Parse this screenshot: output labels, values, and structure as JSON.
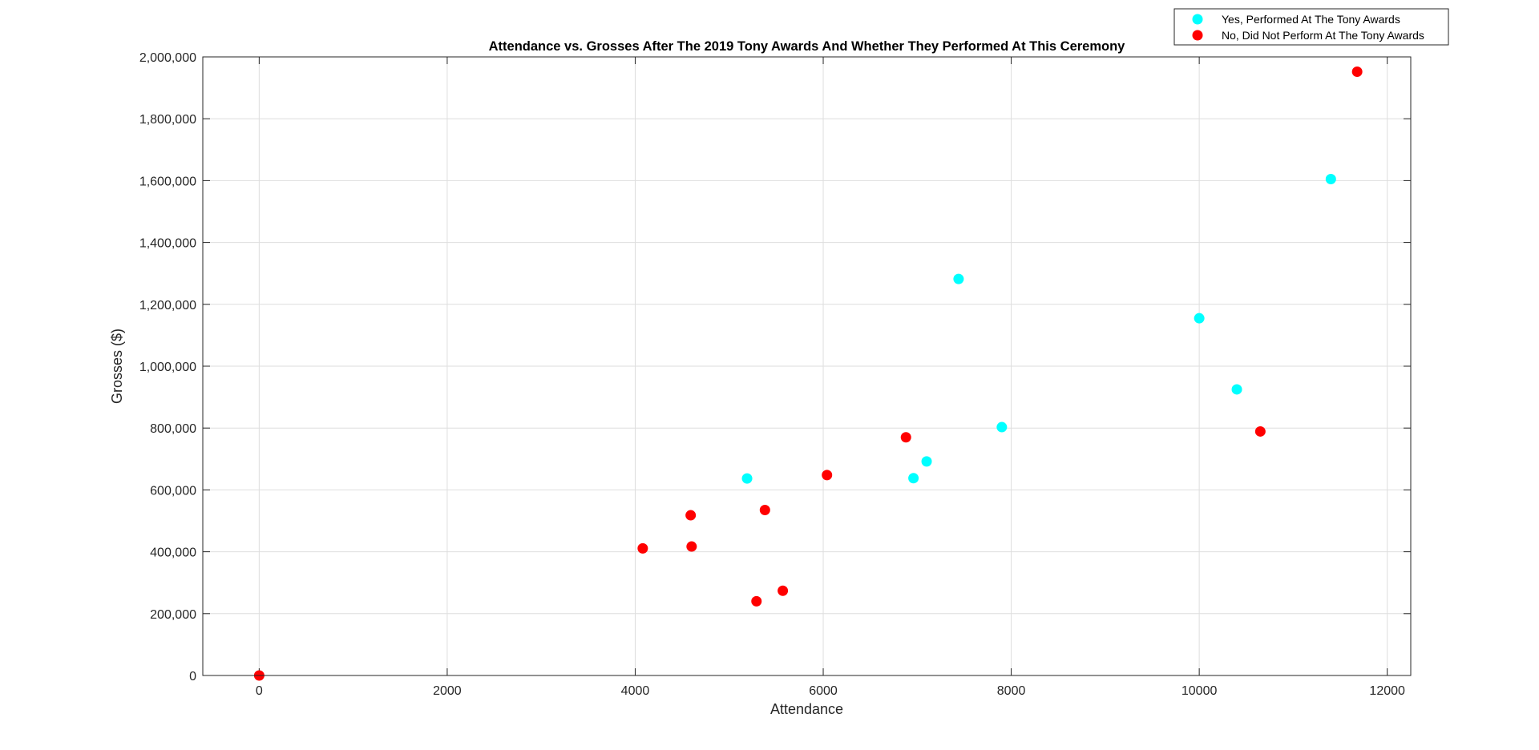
{
  "chart_data": {
    "type": "scatter",
    "title": "Attendance vs. Grosses After The 2019 Tony Awards And Whether They Performed At This Ceremony",
    "xlabel": "Attendance",
    "ylabel": "Grosses ($)",
    "xlim": [
      -600,
      12250
    ],
    "ylim": [
      0,
      2000000
    ],
    "x_ticks": [
      0,
      2000,
      4000,
      6000,
      8000,
      10000,
      12000
    ],
    "x_tick_labels": [
      "0",
      "2000",
      "4000",
      "6000",
      "8000",
      "10000",
      "12000"
    ],
    "y_ticks": [
      0,
      200000,
      400000,
      600000,
      800000,
      1000000,
      1200000,
      1400000,
      1600000,
      1800000,
      2000000
    ],
    "y_tick_labels": [
      "0",
      "200,000",
      "400,000",
      "600,000",
      "800,000",
      "1,000,000",
      "1,200,000",
      "1,400,000",
      "1,600,000",
      "1,800,000",
      "2,000,000"
    ],
    "grid": true,
    "legend_position": "top-right",
    "series": [
      {
        "name": "Yes, Performed At The Tony Awards",
        "color": "#00ffff",
        "points": [
          {
            "x": 5190,
            "y": 637000
          },
          {
            "x": 6960,
            "y": 638000
          },
          {
            "x": 7100,
            "y": 692000
          },
          {
            "x": 7440,
            "y": 1282000
          },
          {
            "x": 7900,
            "y": 803000
          },
          {
            "x": 10000,
            "y": 1155000
          },
          {
            "x": 10400,
            "y": 925000
          },
          {
            "x": 11400,
            "y": 1605000
          }
        ]
      },
      {
        "name": "No, Did Not Perform At The Tony Awards",
        "color": "#ff0000",
        "points": [
          {
            "x": 0,
            "y": 0
          },
          {
            "x": 4080,
            "y": 411000
          },
          {
            "x": 4590,
            "y": 518000
          },
          {
            "x": 4600,
            "y": 417000
          },
          {
            "x": 5290,
            "y": 240000
          },
          {
            "x": 5380,
            "y": 535000
          },
          {
            "x": 5570,
            "y": 274000
          },
          {
            "x": 6040,
            "y": 648000
          },
          {
            "x": 6880,
            "y": 770000
          },
          {
            "x": 10650,
            "y": 789000
          },
          {
            "x": 11680,
            "y": 1952000
          }
        ]
      }
    ]
  }
}
